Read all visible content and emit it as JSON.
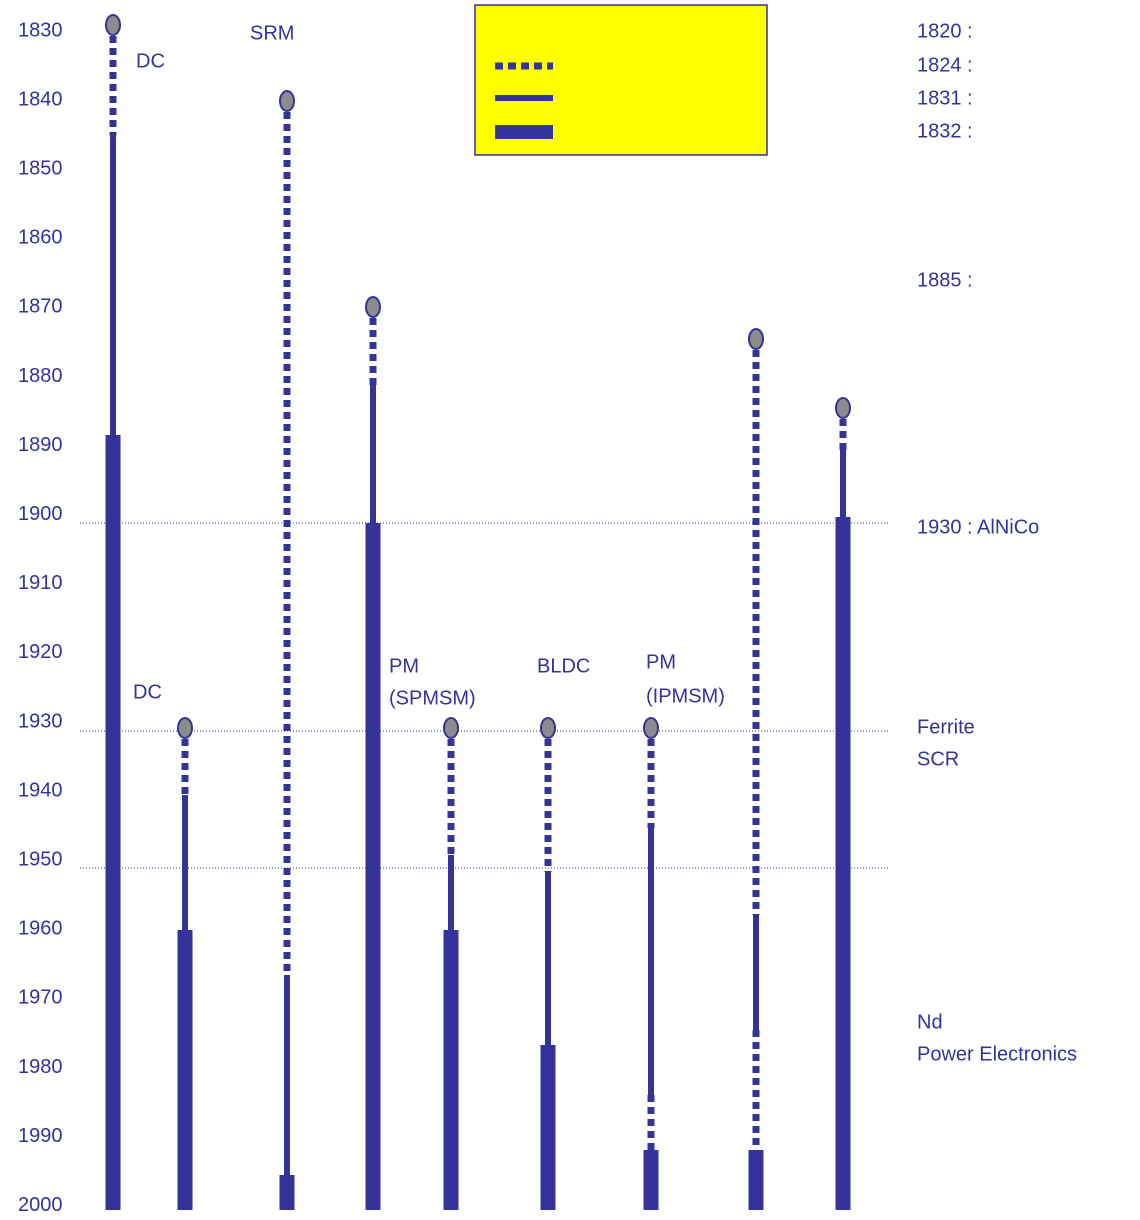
{
  "axis": {
    "years": [
      "1830",
      "1840",
      "1850",
      "1860",
      "1870",
      "1880",
      "1890",
      "1900",
      "1910",
      "1920",
      "1930",
      "1940",
      "1950",
      "1960",
      "1970",
      "1980",
      "1990",
      "2000"
    ]
  },
  "motors": [
    {
      "label": "DC"
    },
    {
      "label": "SRM"
    },
    {
      "label": "DC"
    },
    {
      "label": "PM",
      "sublabel": "(SPMSM)"
    },
    {
      "label": "BLDC"
    },
    {
      "label": "PM",
      "sublabel": "(IPMSM)"
    }
  ],
  "events": [
    "1820 :",
    "1824 :",
    "1831 :",
    "1832 :",
    "1885 :",
    "1930 : AlNiCo",
    "Ferrite",
    "SCR",
    "Nd",
    "Power Electronics"
  ]
}
